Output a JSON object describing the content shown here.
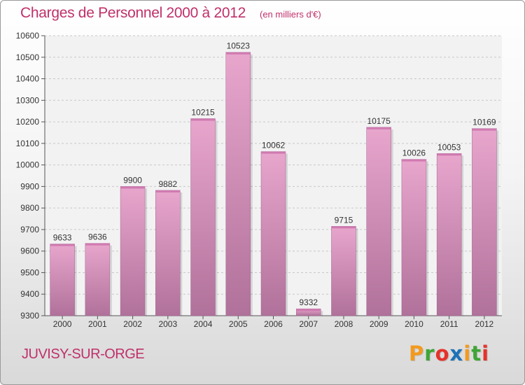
{
  "header": {
    "title": "Charges de Personnel 2000 à 2012",
    "subtitle": "(en milliers d'€)"
  },
  "footer": {
    "city": "JUVISY-SUR-ORGE",
    "logo": {
      "letters": [
        "P",
        "r",
        "o",
        "x",
        "i",
        "t",
        "i"
      ],
      "colors": [
        "#f39a1e",
        "#3fa535",
        "#e5332a",
        "#1d71b8",
        "#f39a1e",
        "#3fa535",
        "#e5332a"
      ]
    }
  },
  "colors": {
    "text_accent": "#c0306a",
    "bar_top": "#e8a6cd",
    "bar_bottom": "#b0719a",
    "grid": "#c8c8c8"
  },
  "chart_data": {
    "type": "bar",
    "categories": [
      "2000",
      "2001",
      "2002",
      "2003",
      "2004",
      "2005",
      "2006",
      "2007",
      "2008",
      "2009",
      "2010",
      "2011",
      "2012"
    ],
    "values": [
      9633,
      9636,
      9900,
      9882,
      10215,
      10523,
      10062,
      9332,
      9715,
      10175,
      10026,
      10053,
      10169
    ],
    "yticks": [
      9300,
      9400,
      9500,
      9600,
      9700,
      9800,
      9900,
      10000,
      10100,
      10200,
      10300,
      10400,
      10500,
      10600
    ],
    "ylim": [
      9300,
      10600
    ],
    "grid": true
  }
}
